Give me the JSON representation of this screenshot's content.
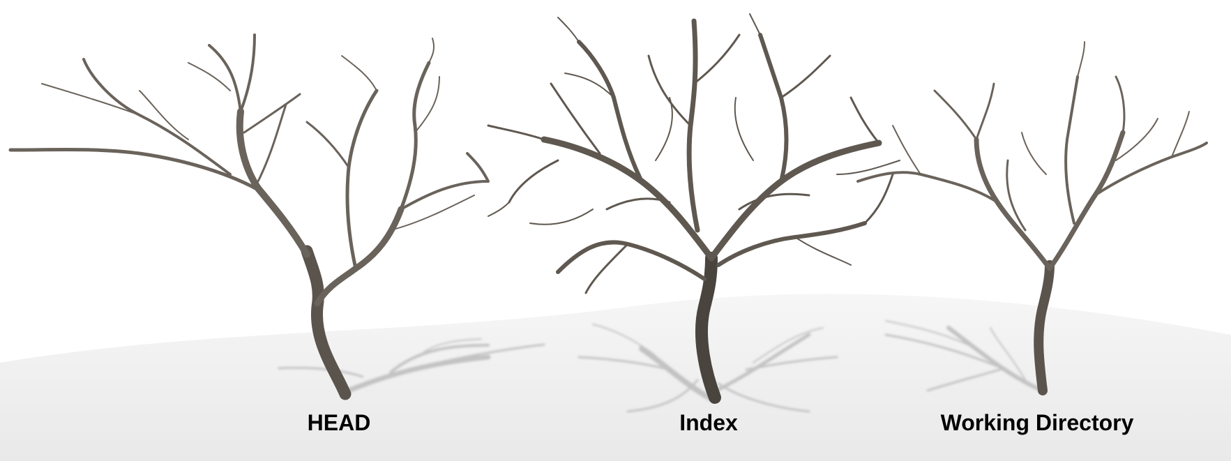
{
  "figure": {
    "labels": {
      "head": "HEAD",
      "index": "Index",
      "working_directory": "Working Directory"
    },
    "colors": {
      "background": "#ffffff",
      "ground": "#efefef",
      "branch": "#6a635b",
      "branch_dark": "#3f3a35",
      "shadow": "#bcbcbc",
      "caption_text": "#000000"
    }
  }
}
